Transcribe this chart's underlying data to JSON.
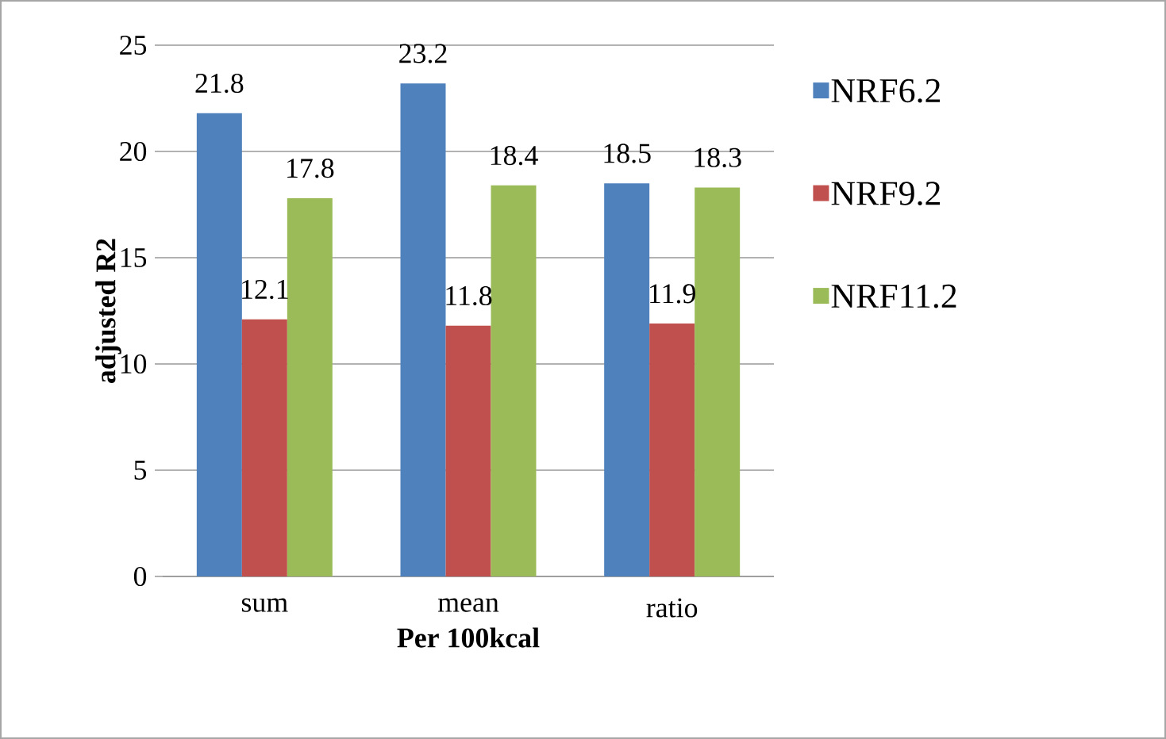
{
  "chart_data": {
    "type": "bar",
    "xlabel": "Per 100kcal",
    "ylabel": "adjusted R2",
    "categories": [
      "sum",
      "mean",
      "ratio"
    ],
    "series": [
      {
        "name": "NRF6.2",
        "color": "#4f81bd",
        "values": [
          21.8,
          23.2,
          18.5
        ]
      },
      {
        "name": "NRF9.2",
        "color": "#c0504d",
        "values": [
          12.1,
          11.8,
          11.9
        ]
      },
      {
        "name": "NRF11.2",
        "color": "#9bbb59",
        "values": [
          17.8,
          18.4,
          18.3
        ]
      }
    ],
    "ylim": [
      0,
      25
    ],
    "yticks": [
      0,
      5,
      10,
      15,
      20,
      25
    ],
    "grid": "y",
    "legend": "right",
    "data_labels": true
  }
}
